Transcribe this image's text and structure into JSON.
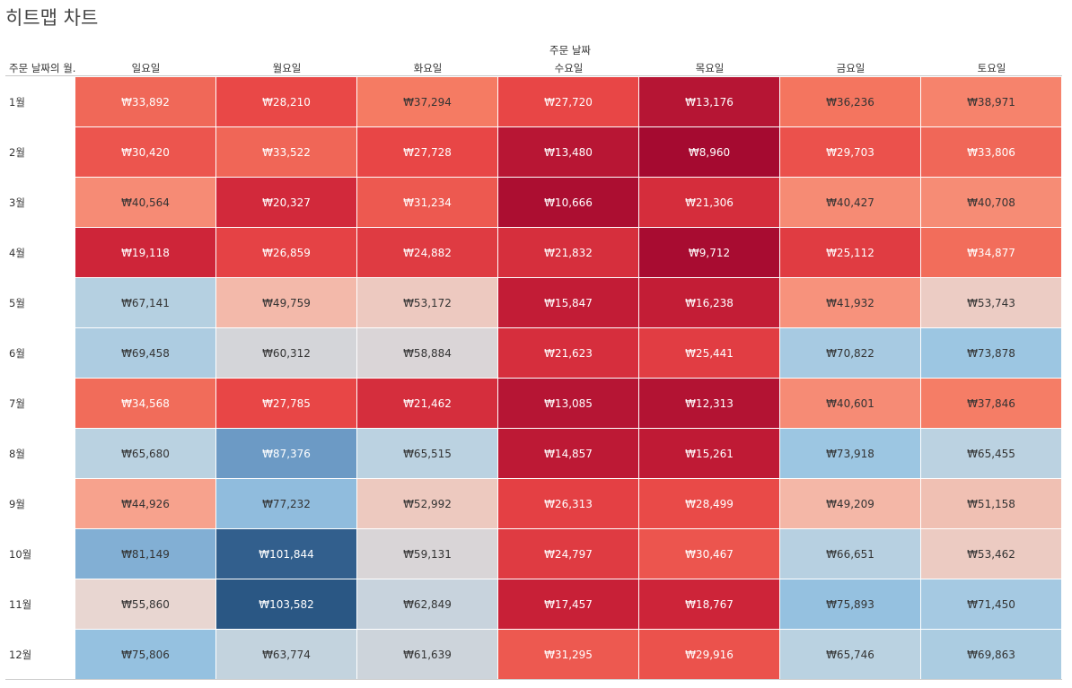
{
  "chart_data": {
    "type": "heatmap",
    "title": "히트맵 차트",
    "column_field": "주문 날짜",
    "row_field": "주문 날짜의 월",
    "columns": [
      "일요일",
      "월요일",
      "화요일",
      "수요일",
      "목요일",
      "금요일",
      "토요일"
    ],
    "rows": [
      "1월",
      "2월",
      "3월",
      "4월",
      "5월",
      "6월",
      "7월",
      "8월",
      "9월",
      "10월",
      "11월",
      "12월"
    ],
    "values": [
      [
        "₩33,892",
        "₩28,210",
        "₩37,294",
        "₩27,720",
        "₩13,176",
        "₩36,236",
        "₩38,971"
      ],
      [
        "₩30,420",
        "₩33,522",
        "₩27,728",
        "₩13,480",
        "₩8,960",
        "₩29,703",
        "₩33,806"
      ],
      [
        "₩40,564",
        "₩20,327",
        "₩31,234",
        "₩10,666",
        "₩21,306",
        "₩40,427",
        "₩40,708"
      ],
      [
        "₩19,118",
        "₩26,859",
        "₩24,882",
        "₩21,832",
        "₩9,712",
        "₩25,112",
        "₩34,877"
      ],
      [
        "₩67,141",
        "₩49,759",
        "₩53,172",
        "₩15,847",
        "₩16,238",
        "₩41,932",
        "₩53,743"
      ],
      [
        "₩69,458",
        "₩60,312",
        "₩58,884",
        "₩21,623",
        "₩25,441",
        "₩70,822",
        "₩73,878"
      ],
      [
        "₩34,568",
        "₩27,785",
        "₩21,462",
        "₩13,085",
        "₩12,313",
        "₩40,601",
        "₩37,846"
      ],
      [
        "₩65,680",
        "₩87,376",
        "₩65,515",
        "₩14,857",
        "₩15,261",
        "₩73,918",
        "₩65,455"
      ],
      [
        "₩44,926",
        "₩77,232",
        "₩52,992",
        "₩26,313",
        "₩28,499",
        "₩49,209",
        "₩51,158"
      ],
      [
        "₩81,149",
        "₩101,844",
        "₩59,131",
        "₩24,797",
        "₩30,467",
        "₩66,651",
        "₩53,462"
      ],
      [
        "₩55,860",
        "₩103,582",
        "₩62,849",
        "₩17,457",
        "₩18,767",
        "₩75,893",
        "₩71,450"
      ],
      [
        "₩75,806",
        "₩63,774",
        "₩61,639",
        "₩31,295",
        "₩29,916",
        "₩65,746",
        "₩69,863"
      ]
    ],
    "color_scale": {
      "type": "diverging",
      "low_color": "#a50a30",
      "mid_color": "#e8d7d2",
      "high_color": "#2a5784",
      "low_text_color": "#ffffff",
      "high_text_color": "#333333"
    },
    "legend": "none",
    "grid": false
  }
}
